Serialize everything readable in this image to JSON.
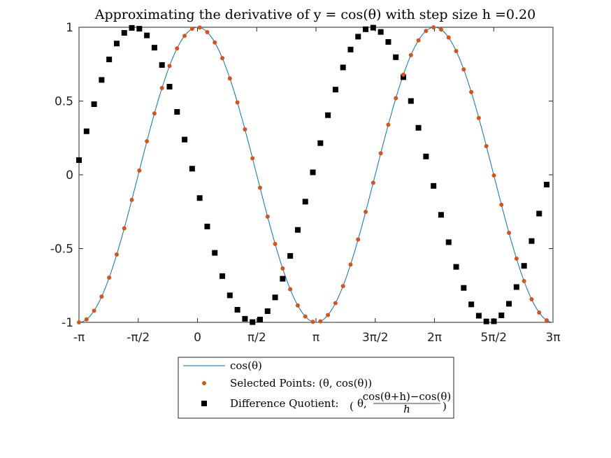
{
  "chart_data": {
    "type": "scatter",
    "title": "Approximating the derivative of y = cos(θ) with step size h =0.20",
    "xlabel": "",
    "ylabel": "",
    "xlim": [
      -3.14159,
      9.42478
    ],
    "ylim": [
      -1,
      1
    ],
    "x_ticks": [
      {
        "value": -3.14159,
        "label": "-π"
      },
      {
        "value": -1.5708,
        "label": "-π/2"
      },
      {
        "value": 0,
        "label": "0"
      },
      {
        "value": 1.5708,
        "label": "π/2"
      },
      {
        "value": 3.14159,
        "label": "π"
      },
      {
        "value": 4.71239,
        "label": "3π/2"
      },
      {
        "value": 6.28319,
        "label": "2π"
      },
      {
        "value": 7.85398,
        "label": "5π/2"
      },
      {
        "value": 9.42478,
        "label": "3π"
      }
    ],
    "y_ticks": [
      {
        "value": 1,
        "label": "1"
      },
      {
        "value": 0.5,
        "label": "0.5"
      },
      {
        "value": 0,
        "label": "0"
      },
      {
        "value": -0.5,
        "label": "-0.5"
      },
      {
        "value": -1,
        "label": "-1"
      }
    ],
    "grid": false,
    "legend_position": "bottom-center-outside",
    "series": [
      {
        "name": "cos(θ)",
        "kind": "line",
        "color": "#0072BD",
        "function": "cos",
        "x_range": [
          -3.14159,
          9.42478
        ]
      },
      {
        "name": "Selected Points: (θ, cos(θ))",
        "kind": "points",
        "marker": "circle",
        "color": "#D95319",
        "x_start": -3.14159,
        "x_step": 0.2,
        "count": 63,
        "y_function": "cos"
      },
      {
        "name": "Difference Quotient: (θ, (cos(θ+h)−cos(θ))/h)",
        "kind": "points",
        "marker": "square",
        "color": "#000000",
        "x_start": -3.14159,
        "x_step": 0.2,
        "count": 63,
        "h": 0.2,
        "y_function": "difference_quotient_cos"
      }
    ]
  },
  "legend": {
    "entries": [
      {
        "parts": [
          "cos(θ)"
        ]
      },
      {
        "parts": [
          "Selected Points:  (θ, cos(θ))"
        ]
      },
      {
        "parts": [
          "Difference Quotient:  ",
          "θ, ",
          "cos(θ+h)−cos(θ)",
          "h"
        ]
      }
    ]
  }
}
